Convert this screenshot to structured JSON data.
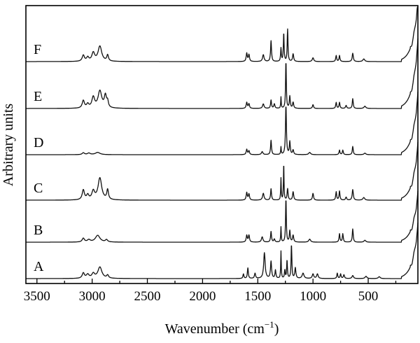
{
  "chart_data": {
    "type": "line",
    "xlabel": "Wavenumber (cm",
    "xlabel_sup": "−1",
    "xlabel_close": ")",
    "ylabel": "Arbitrary units",
    "xlim": [
      3600,
      50
    ],
    "x_reversed": true,
    "x_ticks": [
      3500,
      3000,
      2500,
      2000,
      1500,
      1000,
      500
    ],
    "y_ticks": [],
    "series_order_bottom_to_top": [
      "A",
      "B",
      "C",
      "D",
      "E",
      "F"
    ],
    "series": [
      {
        "name": "A",
        "baseline": 0.0,
        "peaks": [
          [
            3080,
            0.14,
            12
          ],
          [
            3040,
            0.1,
            15
          ],
          [
            2990,
            0.12,
            15
          ],
          [
            2930,
            0.3,
            22
          ],
          [
            2860,
            0.08,
            10
          ],
          [
            1630,
            0.12,
            5
          ],
          [
            1590,
            0.28,
            5
          ],
          [
            1525,
            0.14,
            6
          ],
          [
            1440,
            0.68,
            8
          ],
          [
            1380,
            0.45,
            6
          ],
          [
            1340,
            0.22,
            5
          ],
          [
            1290,
            0.72,
            3
          ],
          [
            1255,
            0.22,
            4
          ],
          [
            1235,
            0.48,
            4
          ],
          [
            1195,
            0.9,
            4
          ],
          [
            1160,
            0.28,
            6
          ],
          [
            1090,
            0.14,
            10
          ],
          [
            1000,
            0.12,
            8
          ],
          [
            960,
            0.12,
            8
          ],
          [
            780,
            0.14,
            5
          ],
          [
            750,
            0.12,
            5
          ],
          [
            720,
            0.1,
            6
          ],
          [
            640,
            0.08,
            8
          ],
          [
            520,
            0.06,
            10
          ],
          [
            400,
            0.05,
            10
          ]
        ],
        "tail": 1.15
      },
      {
        "name": "B",
        "baseline": 0.0,
        "peaks": [
          [
            3080,
            0.1,
            12
          ],
          [
            3030,
            0.06,
            15
          ],
          [
            2950,
            0.18,
            25
          ],
          [
            2870,
            0.06,
            12
          ],
          [
            1600,
            0.18,
            6
          ],
          [
            1580,
            0.18,
            6
          ],
          [
            1460,
            0.14,
            8
          ],
          [
            1380,
            0.28,
            5
          ],
          [
            1350,
            0.08,
            6
          ],
          [
            1290,
            0.4,
            3
          ],
          [
            1245,
            1.15,
            4
          ],
          [
            1210,
            0.3,
            5
          ],
          [
            1180,
            0.18,
            6
          ],
          [
            1030,
            0.08,
            10
          ],
          [
            760,
            0.22,
            5
          ],
          [
            730,
            0.22,
            5
          ],
          [
            640,
            0.35,
            5
          ],
          [
            530,
            0.05,
            10
          ]
        ],
        "tail": 1.05
      },
      {
        "name": "C",
        "baseline": 0.0,
        "peaks": [
          [
            3080,
            0.26,
            12
          ],
          [
            3040,
            0.12,
            12
          ],
          [
            2990,
            0.22,
            15
          ],
          [
            2930,
            0.58,
            20
          ],
          [
            2860,
            0.26,
            9
          ],
          [
            1600,
            0.2,
            6
          ],
          [
            1580,
            0.16,
            6
          ],
          [
            1450,
            0.18,
            8
          ],
          [
            1380,
            0.3,
            5
          ],
          [
            1290,
            0.58,
            3
          ],
          [
            1265,
            0.98,
            3
          ],
          [
            1230,
            0.3,
            5
          ],
          [
            1180,
            0.22,
            6
          ],
          [
            1000,
            0.18,
            6
          ],
          [
            790,
            0.22,
            5
          ],
          [
            760,
            0.24,
            5
          ],
          [
            700,
            0.08,
            6
          ],
          [
            640,
            0.28,
            6
          ],
          [
            540,
            0.07,
            10
          ]
        ],
        "tail": 1.2
      },
      {
        "name": "D",
        "baseline": 0.0,
        "peaks": [
          [
            3080,
            0.05,
            12
          ],
          [
            3030,
            0.04,
            15
          ],
          [
            2950,
            0.06,
            25
          ],
          [
            1600,
            0.14,
            6
          ],
          [
            1580,
            0.1,
            6
          ],
          [
            1460,
            0.08,
            8
          ],
          [
            1380,
            0.38,
            5
          ],
          [
            1290,
            0.2,
            3
          ],
          [
            1245,
            1.3,
            5
          ],
          [
            1210,
            0.34,
            5
          ],
          [
            1180,
            0.12,
            6
          ],
          [
            1030,
            0.06,
            10
          ],
          [
            760,
            0.12,
            5
          ],
          [
            730,
            0.12,
            5
          ],
          [
            640,
            0.22,
            5
          ],
          [
            530,
            0.04,
            10
          ]
        ],
        "tail": 1.3
      },
      {
        "name": "E",
        "baseline": 0.0,
        "peaks": [
          [
            3080,
            0.2,
            12
          ],
          [
            3040,
            0.1,
            12
          ],
          [
            2990,
            0.28,
            15
          ],
          [
            2930,
            0.45,
            20
          ],
          [
            2880,
            0.32,
            12
          ],
          [
            2860,
            0.15,
            8
          ],
          [
            1600,
            0.16,
            6
          ],
          [
            1580,
            0.12,
            6
          ],
          [
            1450,
            0.12,
            8
          ],
          [
            1380,
            0.22,
            5
          ],
          [
            1350,
            0.12,
            6
          ],
          [
            1290,
            0.3,
            3
          ],
          [
            1245,
            1.25,
            4
          ],
          [
            1210,
            0.32,
            5
          ],
          [
            1180,
            0.16,
            6
          ],
          [
            1000,
            0.1,
            6
          ],
          [
            790,
            0.16,
            5
          ],
          [
            760,
            0.16,
            5
          ],
          [
            700,
            0.08,
            6
          ],
          [
            640,
            0.26,
            5
          ],
          [
            530,
            0.06,
            10
          ]
        ],
        "tail": 1.45
      },
      {
        "name": "F",
        "baseline": 0.0,
        "peaks": [
          [
            3080,
            0.16,
            12
          ],
          [
            3040,
            0.1,
            12
          ],
          [
            2990,
            0.22,
            15
          ],
          [
            2930,
            0.4,
            20
          ],
          [
            2860,
            0.16,
            9
          ],
          [
            1600,
            0.22,
            6
          ],
          [
            1580,
            0.18,
            6
          ],
          [
            1450,
            0.18,
            8
          ],
          [
            1380,
            0.55,
            5
          ],
          [
            1290,
            0.35,
            4
          ],
          [
            1265,
            0.75,
            4
          ],
          [
            1230,
            0.85,
            4
          ],
          [
            1180,
            0.2,
            6
          ],
          [
            1000,
            0.1,
            8
          ],
          [
            790,
            0.16,
            5
          ],
          [
            760,
            0.16,
            5
          ],
          [
            640,
            0.22,
            6
          ],
          [
            540,
            0.07,
            10
          ]
        ],
        "tail": 1.3
      }
    ]
  }
}
